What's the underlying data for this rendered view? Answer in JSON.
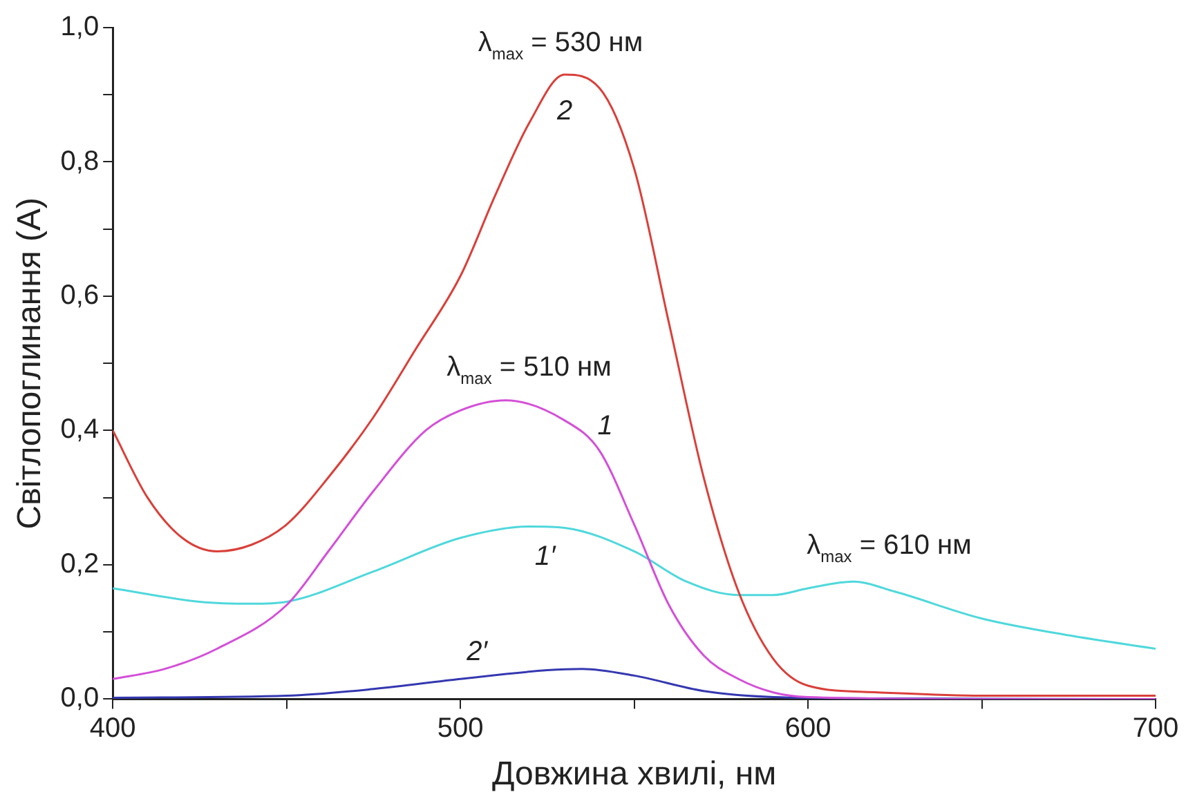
{
  "chart_data": {
    "type": "line",
    "xlabel": "Довжина хвилі, нм",
    "ylabel": "Світлопоглинання (А)",
    "xlim": [
      400,
      700
    ],
    "ylim": [
      0,
      1
    ],
    "xticks": [
      400,
      {
        "value": 450,
        "label": null
      },
      500,
      {
        "value": 550,
        "label": null
      },
      600,
      {
        "value": 650,
        "label": null
      },
      700
    ],
    "yticks": [
      {
        "value": 0,
        "label": "0,0"
      },
      {
        "value": 0.1,
        "label": null
      },
      {
        "value": 0.2,
        "label": "0,2"
      },
      {
        "value": 0.3,
        "label": null
      },
      {
        "value": 0.4,
        "label": "0,4"
      },
      {
        "value": 0.5,
        "label": null
      },
      {
        "value": 0.6,
        "label": "0,6"
      },
      {
        "value": 0.7,
        "label": null
      },
      {
        "value": 0.8,
        "label": "0,8"
      },
      {
        "value": 0.9,
        "label": null
      },
      {
        "value": 1,
        "label": "1,0"
      }
    ],
    "grid": false,
    "legend": false,
    "marker": "none",
    "line_style": "solid",
    "series": [
      {
        "name": "2",
        "color": "#d9403a",
        "x": [
          400,
          410,
          420,
          430,
          440,
          450,
          462,
          475,
          487,
          500,
          510,
          520,
          530,
          540,
          550,
          560,
          570,
          580,
          590,
          600,
          620,
          650,
          700
        ],
        "values": [
          0.4,
          0.3,
          0.24,
          0.22,
          0.23,
          0.26,
          0.33,
          0.42,
          0.52,
          0.63,
          0.75,
          0.86,
          0.93,
          0.91,
          0.79,
          0.56,
          0.33,
          0.16,
          0.06,
          0.02,
          0.01,
          0.005,
          0.005
        ]
      },
      {
        "name": "1",
        "color": "#d44fd8",
        "x": [
          400,
          415,
          430,
          450,
          462,
          475,
          490,
          500,
          513,
          530,
          540,
          550,
          560,
          570,
          580,
          590,
          600,
          650,
          700
        ],
        "values": [
          0.03,
          0.045,
          0.075,
          0.14,
          0.22,
          0.31,
          0.4,
          0.43,
          0.445,
          0.415,
          0.37,
          0.26,
          0.14,
          0.065,
          0.03,
          0.01,
          0.003,
          0,
          0
        ]
      },
      {
        "name": "1′",
        "color": "#4fd8dc",
        "x": [
          400,
          425,
          440,
          450,
          475,
          500,
          520,
          530,
          550,
          565,
          580,
          590,
          600,
          613,
          625,
          650,
          675,
          700
        ],
        "values": [
          0.165,
          0.145,
          0.142,
          0.145,
          0.19,
          0.24,
          0.257,
          0.255,
          0.22,
          0.175,
          0.155,
          0.155,
          0.165,
          0.175,
          0.16,
          0.12,
          0.095,
          0.075
        ]
      },
      {
        "name": "2′",
        "color": "#3438b0",
        "x": [
          400,
          450,
          475,
          500,
          525,
          535,
          550,
          570,
          590,
          620,
          700
        ],
        "values": [
          0.002,
          0.005,
          0.015,
          0.03,
          0.043,
          0.045,
          0.035,
          0.012,
          0.003,
          0.001,
          0
        ]
      }
    ],
    "annotations": [
      {
        "text": "λ$_{max}$ = 530 нм",
        "x": 530,
        "y": 0.93
      },
      {
        "text": "λ$_{max}$ = 510 нм",
        "x": 513,
        "y": 0.445
      },
      {
        "text": "λ$_{max}$ = 610 нм",
        "x": 613,
        "y": 0.175
      }
    ]
  }
}
